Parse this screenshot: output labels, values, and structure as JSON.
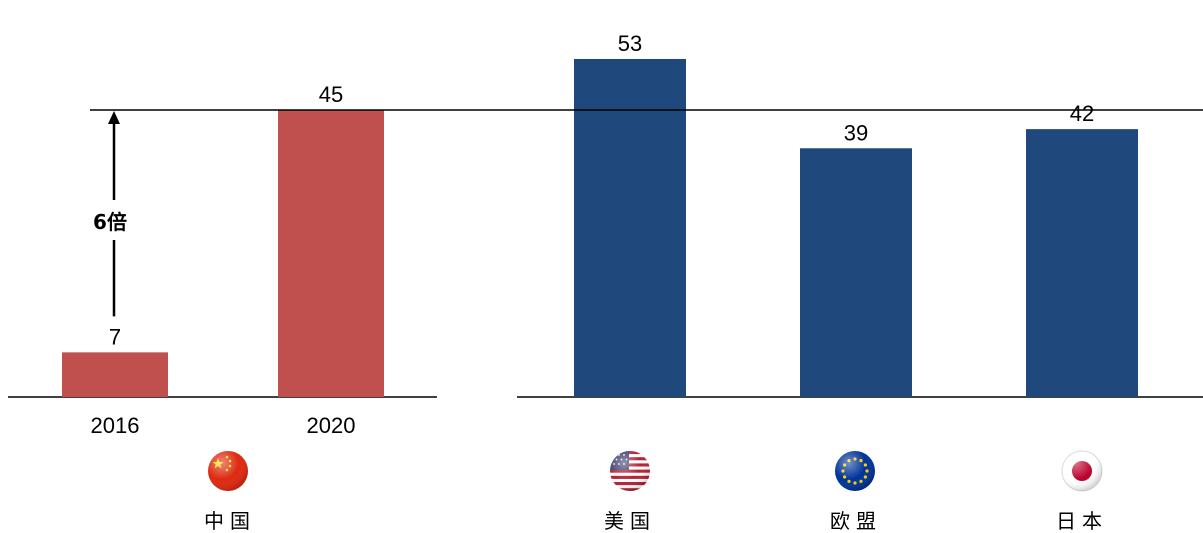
{
  "chart_data": [
    {
      "type": "bar",
      "categories": [
        "2016",
        "2020"
      ],
      "values": [
        7,
        45
      ],
      "color": "#c0504d",
      "region_label": "中国",
      "region_flag": "china-flag-icon",
      "annotation": "6倍"
    },
    {
      "type": "bar",
      "categories": [
        "美国",
        "欧盟",
        "日本"
      ],
      "values": [
        53,
        39,
        42
      ],
      "color": "#1f497d",
      "flags": [
        "usa-flag-icon",
        "eu-flag-icon",
        "japan-flag-icon"
      ]
    }
  ]
}
